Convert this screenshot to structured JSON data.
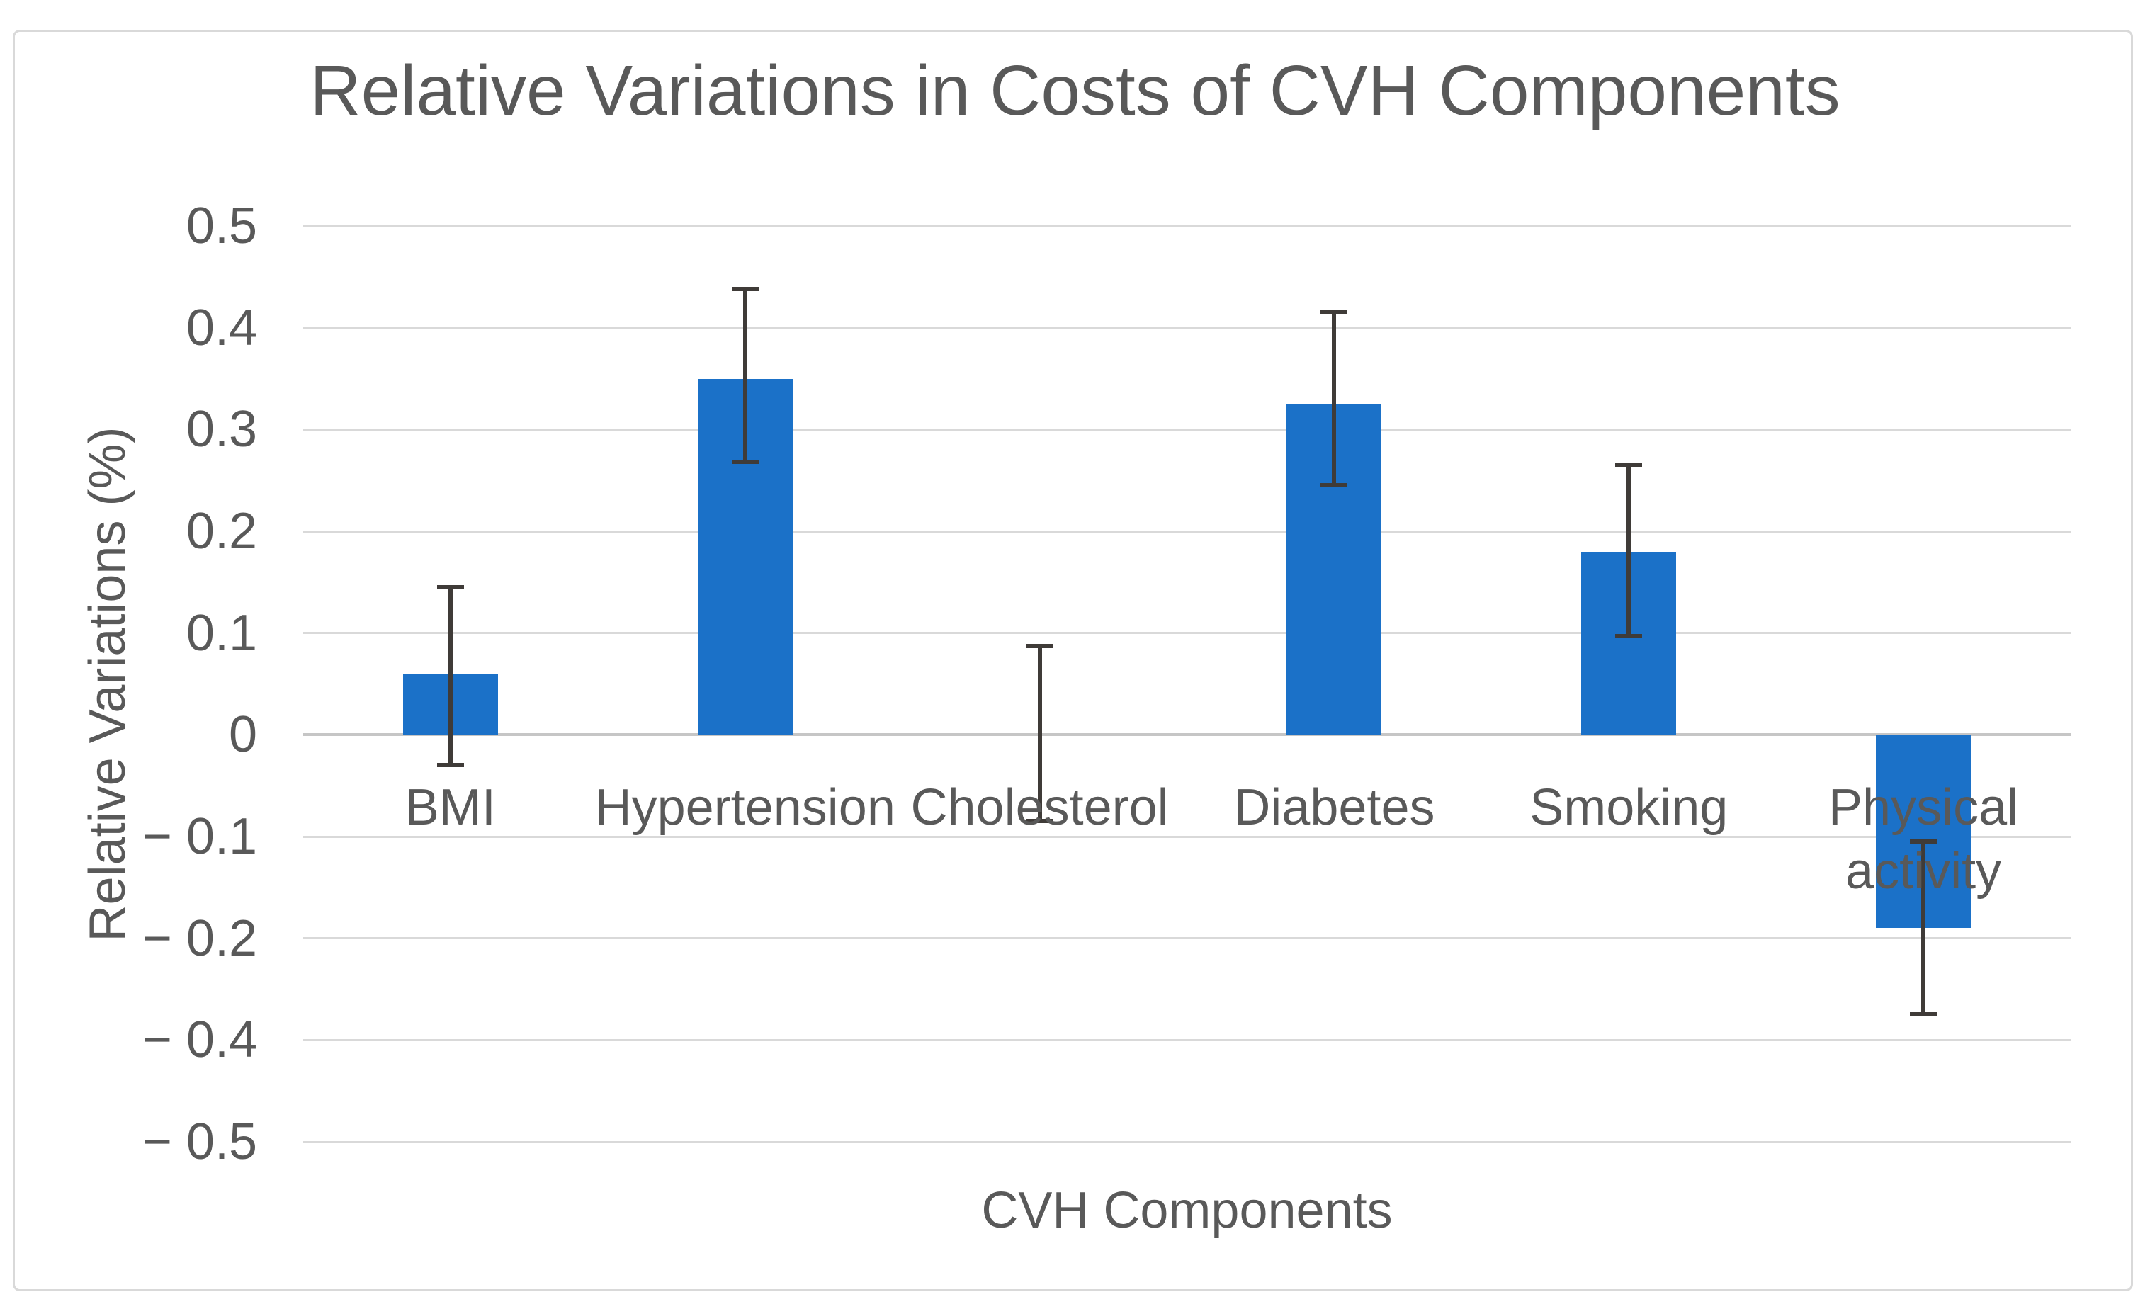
{
  "chart_data": {
    "type": "bar",
    "title": "Relative Variations in Costs of CVH Components",
    "xlabel": "CVH Components",
    "ylabel": "Relative Variations (%)",
    "categories": [
      "BMI",
      "Hypertension",
      "Cholesterol",
      "Diabetes",
      "Smoking",
      "Physical activity"
    ],
    "values": [
      0.06,
      0.35,
      0,
      0.325,
      0.18,
      -0.19
    ],
    "error_bars": {
      "upper": [
        0.145,
        0.438,
        0.087,
        0.415,
        0.265,
        -0.105
      ],
      "lower": [
        -0.03,
        0.268,
        -0.085,
        0.245,
        0.097,
        -0.35
      ]
    },
    "ytick_labels": [
      "0.5",
      "0.4",
      "0.3",
      "0.2",
      "0.1",
      "0",
      "− 0.1",
      "− 0.2",
      "− 0.4",
      "− 0.5"
    ],
    "ytick_values": [
      0.5,
      0.4,
      0.3,
      0.2,
      0.1,
      0,
      -0.1,
      -0.2,
      -0.4,
      -0.5
    ],
    "axis_note": "y axis labels skip -0.3; ticks equally spaced as labeled",
    "grid": true,
    "legend_position": "none",
    "bar_color": "#1B71C8",
    "error_bar_color": "#3F3B38",
    "gridline_color": "#D9D9D9",
    "zero_line_color": "#C6C6C6",
    "frame_border_color": "#D9D9D9",
    "text_color": "#595959"
  }
}
